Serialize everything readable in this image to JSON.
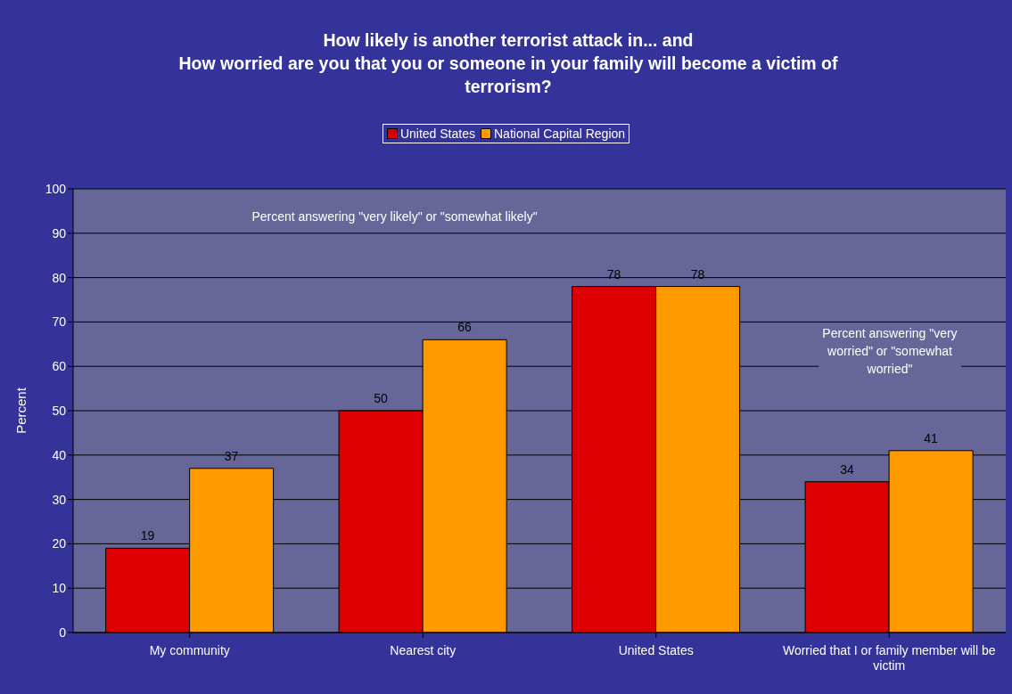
{
  "chart_data": {
    "type": "bar",
    "title": "How likely is another terrorist attack in... and\nHow worried are you that you or someone in your family will become a victim of terrorism?",
    "ylabel": "Percent",
    "categories": [
      "My community",
      "Nearest city",
      "United States",
      "Worried that I or family member will be victim"
    ],
    "series": [
      {
        "name": "United States",
        "color": "#dd0000",
        "values": [
          19,
          50,
          78,
          34
        ]
      },
      {
        "name": "National Capital Region",
        "color": "#ff9900",
        "values": [
          37,
          66,
          78,
          41
        ]
      }
    ],
    "ylim": [
      0,
      100
    ],
    "yticks": [
      0,
      10,
      20,
      30,
      40,
      50,
      60,
      70,
      80,
      90,
      100
    ],
    "grid": "y",
    "legend": "top",
    "data_labels": true,
    "annotations": [
      "Percent answering \"very likely\" or \"somewhat likely\"",
      "Percent answering \"very worried\" or \"somewhat worried\""
    ]
  }
}
